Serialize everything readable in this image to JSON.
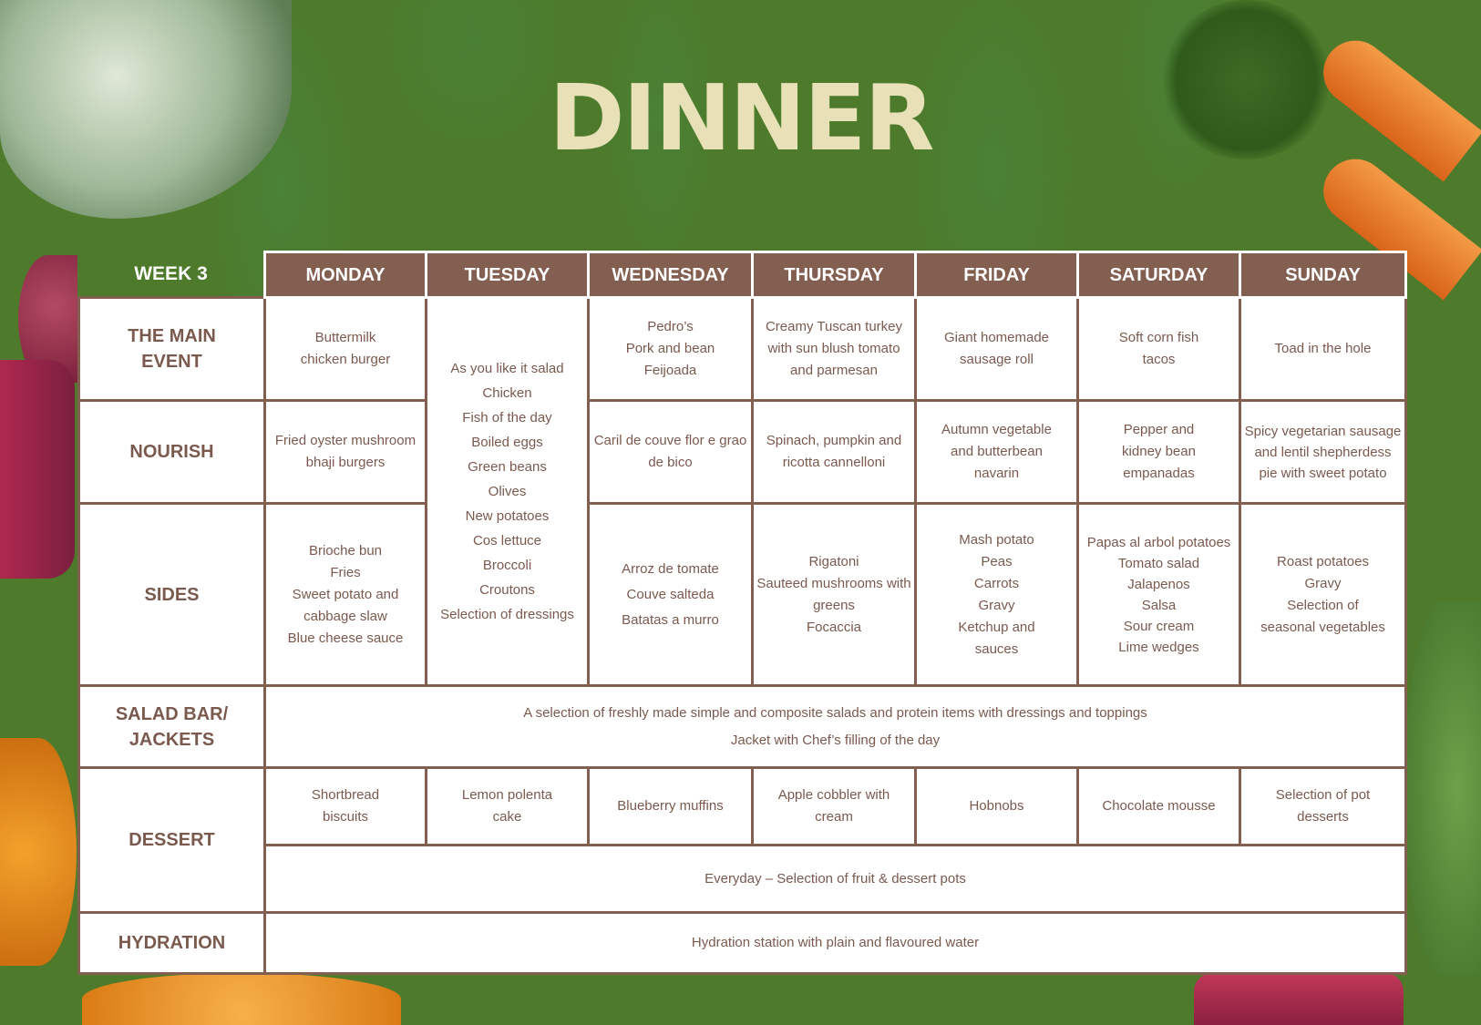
{
  "title": "DINNER",
  "week_label": "WEEK 3",
  "days": [
    "MONDAY",
    "TUESDAY",
    "WEDNESDAY",
    "THURSDAY",
    "FRIDAY",
    "SATURDAY",
    "SUNDAY"
  ],
  "rows": {
    "main_event": {
      "label": "THE MAIN EVENT",
      "items": [
        "Buttermilk chicken burger",
        null,
        "Pedro’s\nPork and bean\nFeijoada",
        "Creamy Tuscan turkey with sun blush tomato and parmesan",
        "Giant homemade sausage roll",
        "Soft corn fish tacos",
        "Toad in the hole"
      ]
    },
    "tuesday_salad": "As you like it salad\nChicken\nFish of the day\nBoiled eggs\nGreen beans\nOlives\nNew potatoes\nCos lettuce\nBroccoli\nCroutons\nSelection of dressings",
    "nourish": {
      "label": "NOURISH",
      "items": [
        "Fried oyster mushroom bhaji burgers",
        null,
        "Caril de couve flor e grao de bico",
        "Spinach, pumpkin and ricotta cannelloni",
        "Autumn vegetable and butterbean navarin",
        "Pepper and kidney bean empanadas",
        "Spicy vegetarian sausage and lentil shepherdess pie with sweet potato"
      ]
    },
    "sides": {
      "label": "SIDES",
      "items": [
        "Brioche bun\nFries\nSweet potato and cabbage slaw\nBlue cheese sauce",
        null,
        "Arroz de tomate\nCouve salteda\nBatatas a murro",
        "Rigatoni\nSauteed mushrooms with greens\nFocaccia",
        "Mash potato\nPeas\nCarrots\nGravy\nKetchup and sauces",
        "Papas al arbol potatoes\nTomato salad\nJalapenos\nSalsa\nSour cream\nLime wedges",
        "Roast potatoes\nGravy\nSelection of seasonal vegetables"
      ]
    },
    "salad_bar": {
      "label": "SALAD BAR/ JACKETS",
      "line1": "A selection of freshly made simple and composite salads and protein items with dressings and toppings",
      "line2": "Jacket with Chef’s filling of the day"
    },
    "dessert": {
      "label": "DESSERT",
      "items": [
        "Shortbread biscuits",
        "Lemon polenta cake",
        "Blueberry muffins",
        "Apple cobbler with cream",
        "Hobnobs",
        "Chocolate mousse",
        "Selection of pot desserts"
      ],
      "everyday": "Everyday – Selection of fruit & dessert pots"
    },
    "hydration": {
      "label": "HYDRATION",
      "text": "Hydration station with plain and flavoured water"
    }
  },
  "colors": {
    "background": "#4d7a2b",
    "table_border": "#835f52",
    "text": "#7a5a4e",
    "title": "#e8e0b6"
  }
}
